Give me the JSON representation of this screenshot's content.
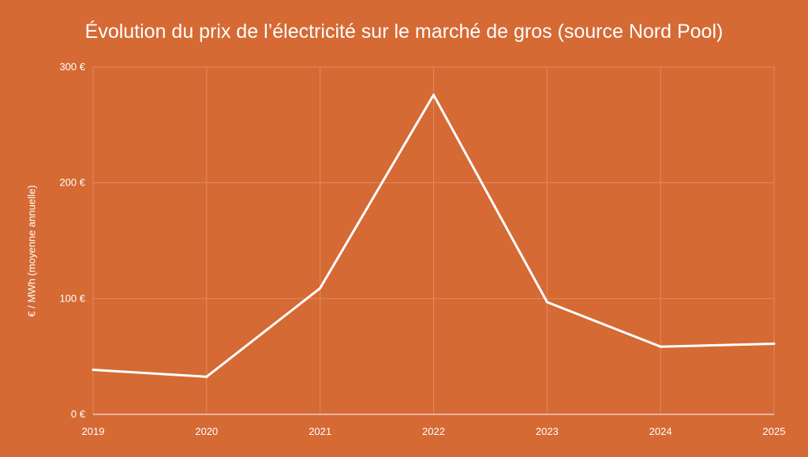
{
  "chart_data": {
    "type": "line",
    "title": "Évolution du prix de l’électricité sur le marché de gros (source Nord Pool)",
    "xlabel": "",
    "ylabel": "€ / MWh (moyenne annuelle)",
    "x": [
      "2019",
      "2020",
      "2021",
      "2022",
      "2023",
      "2024",
      "2025"
    ],
    "series": [
      {
        "values": [
          38.5,
          32.5,
          109,
          276,
          97,
          58.5,
          61
        ]
      }
    ],
    "ylim": [
      0,
      300
    ],
    "y_ticks": [
      0,
      100,
      200,
      300
    ],
    "y_tick_labels": [
      "0 €",
      "100 €",
      "200 €",
      "300 €"
    ],
    "grid": true,
    "legend": "none",
    "colors": {
      "background": "#D56A35",
      "line": "#ffffff",
      "grid": "#E08A5F",
      "text": "#ffffff"
    }
  }
}
